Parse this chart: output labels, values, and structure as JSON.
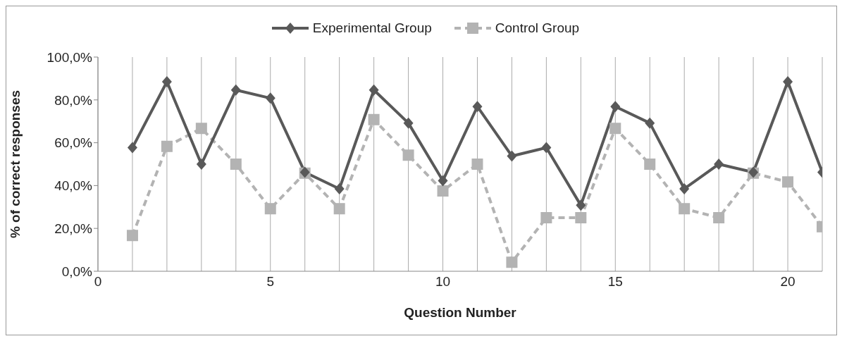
{
  "chart_data": {
    "type": "line",
    "xlabel": "Question Number",
    "ylabel": "% of correct responses",
    "x": [
      1,
      2,
      3,
      4,
      5,
      6,
      7,
      8,
      9,
      10,
      11,
      12,
      13,
      14,
      15,
      16,
      17,
      18,
      19,
      20,
      21
    ],
    "series": [
      {
        "name": "Experimental Group",
        "color": "#595959",
        "marker": "diamond",
        "line_style": "solid",
        "values": [
          57.7,
          88.5,
          50,
          84.6,
          80.8,
          46.2,
          38.5,
          84.6,
          69.2,
          42.3,
          76.9,
          53.8,
          57.7,
          30.8,
          76.9,
          69.2,
          38.5,
          50,
          46.2,
          88.5,
          46.2
        ]
      },
      {
        "name": "Control Group",
        "color": "#b3b3b3",
        "marker": "square",
        "line_style": "dashed",
        "values": [
          16.7,
          58.3,
          66.7,
          50,
          29.2,
          45.8,
          29.2,
          70.8,
          54.2,
          37.5,
          50,
          4.2,
          25,
          25,
          66.7,
          50,
          29.2,
          25,
          45.8,
          41.7,
          20.8
        ]
      }
    ],
    "xlim": [
      0,
      21
    ],
    "xticks": [
      0,
      {
        "value": 1,
        "label": null
      },
      {
        "value": 2,
        "label": null
      },
      {
        "value": 3,
        "label": null
      },
      {
        "value": 4,
        "label": null
      },
      5,
      {
        "value": 6,
        "label": null
      },
      {
        "value": 7,
        "label": null
      },
      {
        "value": 8,
        "label": null
      },
      {
        "value": 9,
        "label": null
      },
      10,
      {
        "value": 11,
        "label": null
      },
      {
        "value": 12,
        "label": null
      },
      {
        "value": 13,
        "label": null
      },
      {
        "value": 14,
        "label": null
      },
      15,
      {
        "value": 16,
        "label": null
      },
      {
        "value": 17,
        "label": null
      },
      {
        "value": 18,
        "label": null
      },
      {
        "value": 19,
        "label": null
      },
      20,
      {
        "value": 21,
        "label": null
      }
    ],
    "ylim": [
      0,
      100
    ],
    "yticks": [
      {
        "value": 0,
        "label": "0,0%"
      },
      {
        "value": 20,
        "label": "20,0%"
      },
      {
        "value": 40,
        "label": "40,0%"
      },
      {
        "value": 60,
        "label": "60,0%"
      },
      {
        "value": 80,
        "label": "80,0%"
      },
      {
        "value": 100,
        "label": "100,0%"
      }
    ],
    "grid": "x",
    "legend": "top"
  }
}
